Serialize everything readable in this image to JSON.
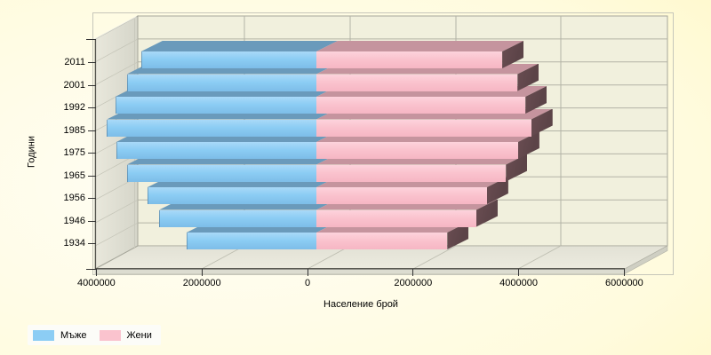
{
  "chart_data": {
    "type": "bar",
    "style": "3d-horizontal-population-pyramid",
    "title": "",
    "ylabel": "Години",
    "xlabel": "Население брой",
    "categories": [
      "2011",
      "2001",
      "1992",
      "1985",
      "1975",
      "1965",
      "1956",
      "1946",
      "1934"
    ],
    "series": [
      {
        "name": "Мъже",
        "side": "left",
        "color": "#8CCDF4",
        "color_top": "#6A9ABB",
        "values": [
          3320000,
          3590000,
          3810000,
          3970000,
          3790000,
          3590000,
          3200000,
          2980000,
          2460000
        ]
      },
      {
        "name": "Жени",
        "side": "right",
        "color": "#FAC3CE",
        "color_top": "#C5949E",
        "color_cap": "#5C4448",
        "values": [
          3520000,
          3810000,
          3960000,
          4070000,
          3820000,
          3590000,
          3230000,
          3030000,
          2480000
        ]
      }
    ],
    "x_tick_labels": [
      "4000000",
      "2000000",
      "0",
      "2000000",
      "4000000",
      "6000000"
    ],
    "x_tick_values": [
      -4000000,
      -2000000,
      0,
      2000000,
      4000000,
      6000000
    ],
    "xlim": [
      -4000000,
      6000000
    ],
    "grid": true,
    "legend_position": "bottom-left"
  },
  "legend": {
    "items": [
      {
        "label": "Мъже",
        "color": "#8CCDF4"
      },
      {
        "label": "Жени",
        "color": "#FAC3CE"
      }
    ]
  }
}
